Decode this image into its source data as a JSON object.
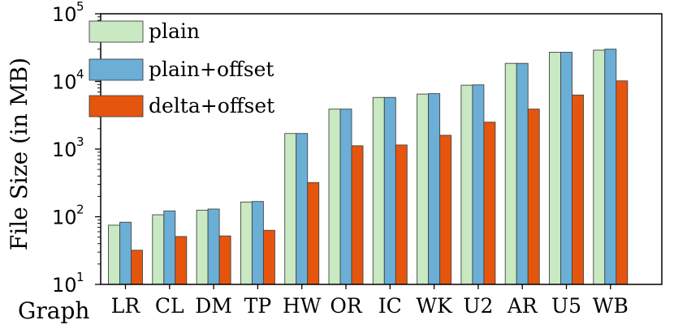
{
  "chart_data": {
    "type": "bar",
    "ylabel": "File Size (in MB)",
    "xlabel": "Graph",
    "y_scale": "log",
    "ylim": [
      10,
      100000
    ],
    "y_ticks": [
      {
        "value": 10,
        "base": "10",
        "exp": "1"
      },
      {
        "value": 100,
        "base": "10",
        "exp": "2"
      },
      {
        "value": 1000,
        "base": "10",
        "exp": "3"
      },
      {
        "value": 10000,
        "base": "10",
        "exp": "4"
      },
      {
        "value": 100000,
        "base": "10",
        "exp": "5"
      }
    ],
    "categories": [
      "LR",
      "CL",
      "DM",
      "TP",
      "HW",
      "OR",
      "IC",
      "WK",
      "U2",
      "AR",
      "U5",
      "WB"
    ],
    "series": [
      {
        "name": "plain",
        "color": "#c9e9c2",
        "values": [
          75,
          107,
          125,
          165,
          1700,
          3900,
          5800,
          6500,
          8800,
          18500,
          27000,
          29000
        ]
      },
      {
        "name": "plain+offset",
        "color": "#6baed6",
        "values": [
          83,
          122,
          130,
          168,
          1700,
          3900,
          5800,
          6600,
          8900,
          18500,
          27000,
          30000
        ]
      },
      {
        "name": "delta+offset",
        "color": "#e6550d",
        "values": [
          32,
          51,
          52,
          63,
          320,
          1120,
          1150,
          1600,
          2500,
          3900,
          6300,
          10200
        ]
      }
    ],
    "legend_position": "top-left",
    "grid": false
  }
}
